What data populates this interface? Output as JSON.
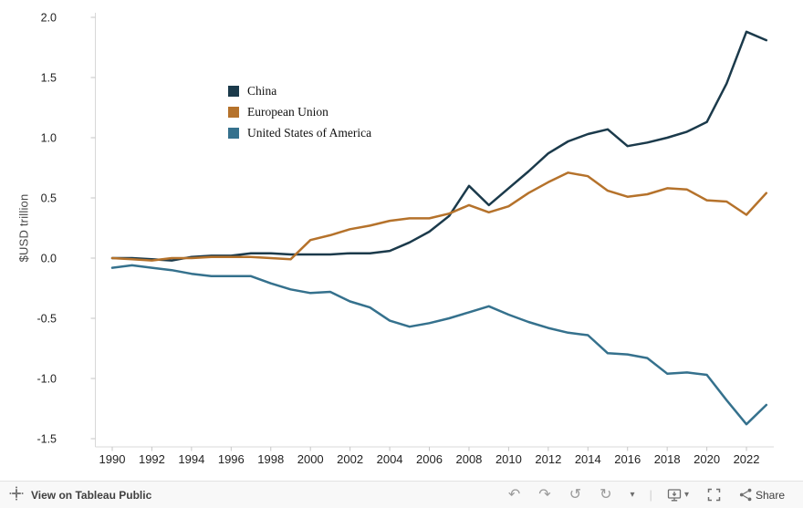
{
  "chart_data": {
    "type": "line",
    "title": "",
    "ylabel": "$USD trillion",
    "xlabel": "",
    "grid": false,
    "legend_position": "inside top-left",
    "ylim": [
      -1.65,
      2.1
    ],
    "years": [
      1990,
      1991,
      1992,
      1993,
      1994,
      1995,
      1996,
      1997,
      1998,
      1999,
      2000,
      2001,
      2002,
      2003,
      2004,
      2005,
      2006,
      2007,
      2008,
      2009,
      2010,
      2011,
      2012,
      2013,
      2014,
      2015,
      2016,
      2017,
      2018,
      2019,
      2020,
      2021,
      2022,
      2023
    ],
    "x_ticks": [
      1990,
      1992,
      1994,
      1996,
      1998,
      2000,
      2002,
      2004,
      2006,
      2008,
      2010,
      2012,
      2014,
      2016,
      2018,
      2020,
      2022
    ],
    "x_tick_labels": [
      "1990",
      "1992",
      "1994",
      "1996",
      "1998",
      "2000",
      "2002",
      "2004",
      "2006",
      "2008",
      "2010",
      "2012",
      "2014",
      "2016",
      "2018",
      "2020",
      "2022"
    ],
    "y_ticks": [
      2.0,
      1.5,
      1.0,
      0.5,
      0.0,
      -0.5,
      -1.0,
      -1.5
    ],
    "y_tick_labels": [
      "2.0",
      "1.5",
      "1.0",
      "0.5",
      "0.0",
      "-0.5",
      "-1.0",
      "-1.5"
    ],
    "series": [
      {
        "name": "China",
        "color": "#1b3a4b",
        "values": [
          0.0,
          0.0,
          -0.01,
          -0.02,
          0.01,
          0.02,
          0.02,
          0.04,
          0.04,
          0.03,
          0.03,
          0.03,
          0.04,
          0.04,
          0.06,
          0.13,
          0.22,
          0.35,
          0.6,
          0.44,
          0.58,
          0.72,
          0.87,
          0.97,
          1.03,
          1.07,
          0.93,
          0.96,
          1.0,
          1.05,
          1.13,
          1.45,
          1.88,
          1.81
        ]
      },
      {
        "name": "European Union",
        "color": "#b5722b",
        "values": [
          0.0,
          -0.01,
          -0.02,
          0.0,
          0.0,
          0.01,
          0.01,
          0.01,
          0.0,
          -0.01,
          0.15,
          0.19,
          0.24,
          0.27,
          0.31,
          0.33,
          0.33,
          0.37,
          0.44,
          0.38,
          0.43,
          0.54,
          0.63,
          0.71,
          0.68,
          0.56,
          0.51,
          0.53,
          0.58,
          0.57,
          0.48,
          0.47,
          0.36,
          0.54
        ]
      },
      {
        "name": "United States of America",
        "color": "#35718d",
        "values": [
          -0.08,
          -0.06,
          -0.08,
          -0.1,
          -0.13,
          -0.15,
          -0.15,
          -0.15,
          -0.21,
          -0.26,
          -0.29,
          -0.28,
          -0.36,
          -0.41,
          -0.52,
          -0.57,
          -0.54,
          -0.5,
          -0.45,
          -0.4,
          -0.47,
          -0.53,
          -0.58,
          -0.62,
          -0.64,
          -0.79,
          -0.8,
          -0.83,
          -0.96,
          -0.95,
          -0.97,
          -1.18,
          -1.38,
          -1.22
        ]
      }
    ]
  },
  "toolbar": {
    "view_label": "View on Tableau Public",
    "share_label": "Share",
    "caret_glyph": "▾",
    "buttons": [
      {
        "icon": "undo-icon",
        "glyph": "↶"
      },
      {
        "icon": "redo-icon",
        "glyph": "↷"
      },
      {
        "icon": "replay-icon",
        "glyph": "↺"
      },
      {
        "icon": "refresh-icon",
        "glyph": "↻"
      },
      {
        "icon": "caret-down-icon",
        "glyph": "▾"
      }
    ],
    "divider_glyph": "|"
  },
  "colors": {
    "background": "#ffffff",
    "axis_line": "#d8d8d8",
    "tick_mark": "#c6c6c6",
    "tick_text": "#222222",
    "toolbar_bg": "#f8f8f8",
    "toolbar_border": "#e2e2e2"
  }
}
